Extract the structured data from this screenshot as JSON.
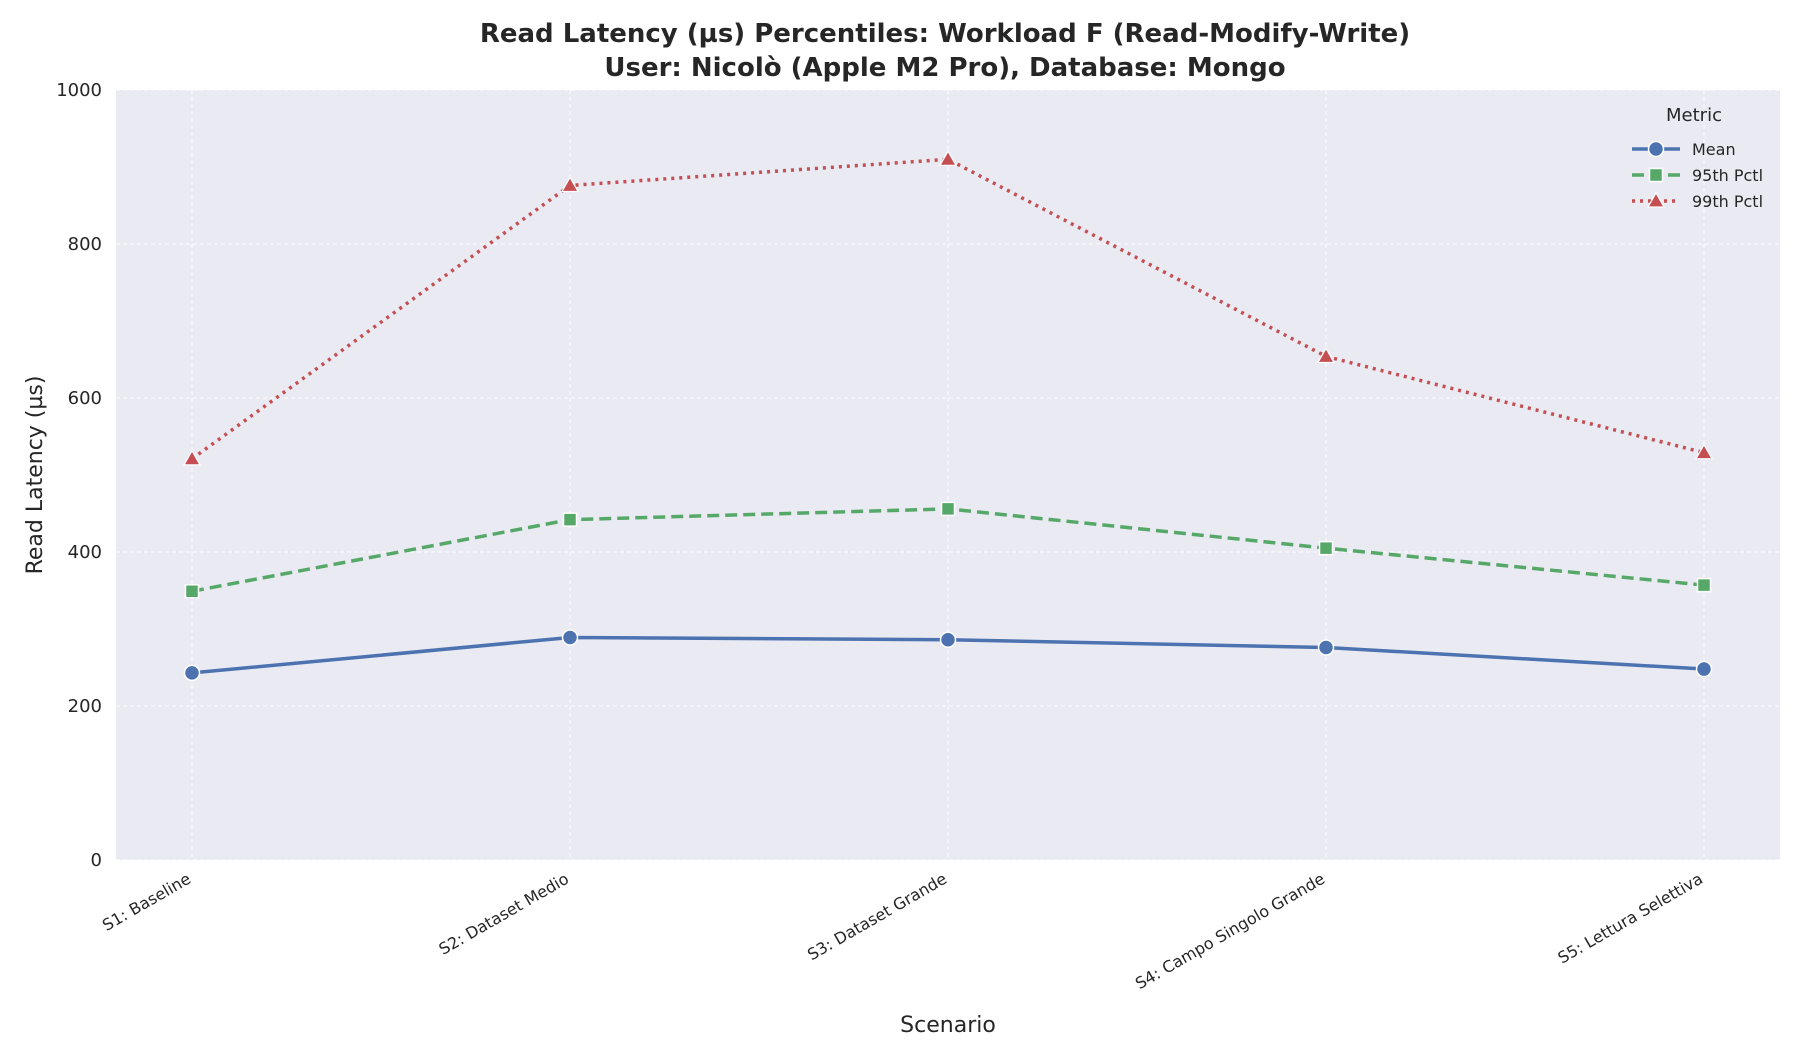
{
  "chart_data": {
    "type": "line",
    "title": "Read Latency (µs) Percentiles: Workload F (Read-Modify-Write)",
    "subtitle": "User: Nicolò (Apple M2 Pro), Database: Mongo",
    "xlabel": "Scenario",
    "ylabel": "Read Latency (µs)",
    "categories": [
      "S1: Baseline",
      "S2: Dataset Medio",
      "S3: Dataset Grande",
      "S4: Campo Singolo Grande",
      "S5: Lettura Selettiva"
    ],
    "ylim": [
      0,
      1000
    ],
    "yticks": [
      0,
      200,
      400,
      600,
      800,
      1000
    ],
    "grid": true,
    "legend": {
      "title": "Metric",
      "placement": "top-right"
    },
    "series": [
      {
        "name": "Mean",
        "values": [
          243,
          289,
          286,
          276,
          248
        ],
        "color": "#4c72b0",
        "line_style": "solid",
        "marker": "circle"
      },
      {
        "name": "95th Pctl",
        "values": [
          349,
          442,
          456,
          405,
          357
        ],
        "color": "#55a868",
        "line_style": "dashed",
        "marker": "square"
      },
      {
        "name": "99th Pctl",
        "values": [
          521,
          876,
          910,
          654,
          529
        ],
        "color": "#c44e52",
        "line_style": "dotted",
        "marker": "triangle"
      }
    ],
    "colors": {
      "plot_background": "#eaeaf2",
      "grid": "#ffffff",
      "text": "#262626"
    }
  }
}
